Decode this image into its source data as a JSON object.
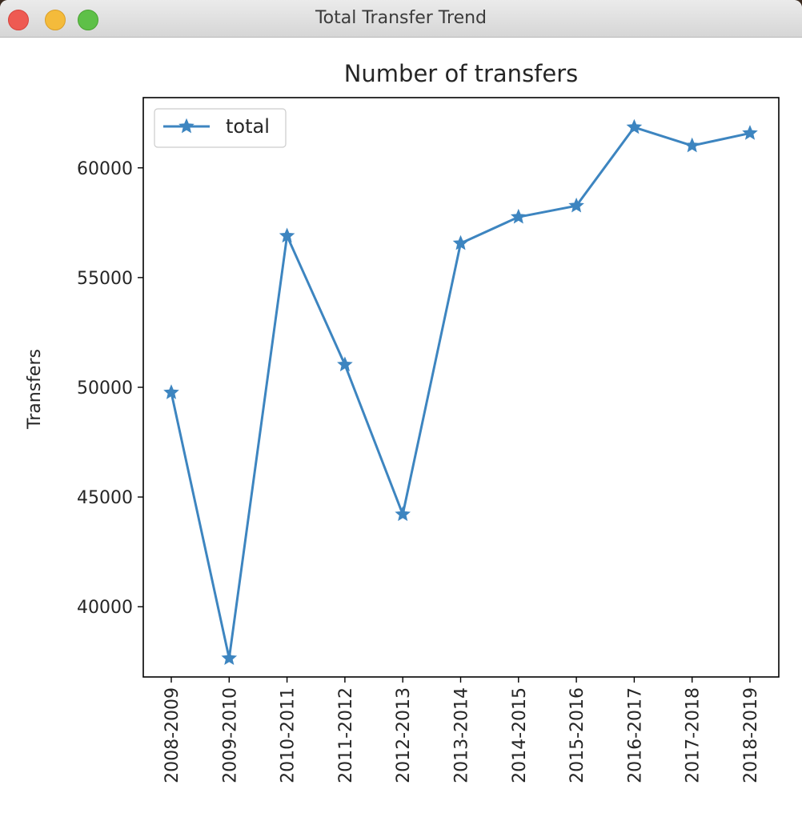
{
  "window": {
    "title": "Total Transfer Trend",
    "buttons": [
      "close",
      "minimize",
      "zoom"
    ]
  },
  "chart_data": {
    "type": "line",
    "title": "Number of transfers",
    "xlabel": "",
    "ylabel": "Transfers",
    "categories": [
      "2008-2009",
      "2009-2010",
      "2010-2011",
      "2011-2012",
      "2012-2013",
      "2013-2014",
      "2014-2015",
      "2015-2016",
      "2016-2017",
      "2017-2018",
      "2018-2019"
    ],
    "series": [
      {
        "name": "total",
        "marker": "star",
        "color": "#3d85c0",
        "values": [
          49760,
          37650,
          56900,
          51030,
          44210,
          56560,
          57760,
          58270,
          61850,
          61010,
          61580
        ]
      }
    ],
    "ylim": [
      36800,
      63200
    ],
    "yticks": [
      40000,
      45000,
      50000,
      55000,
      60000
    ],
    "grid": false,
    "legend": {
      "placement": "top-left"
    }
  }
}
